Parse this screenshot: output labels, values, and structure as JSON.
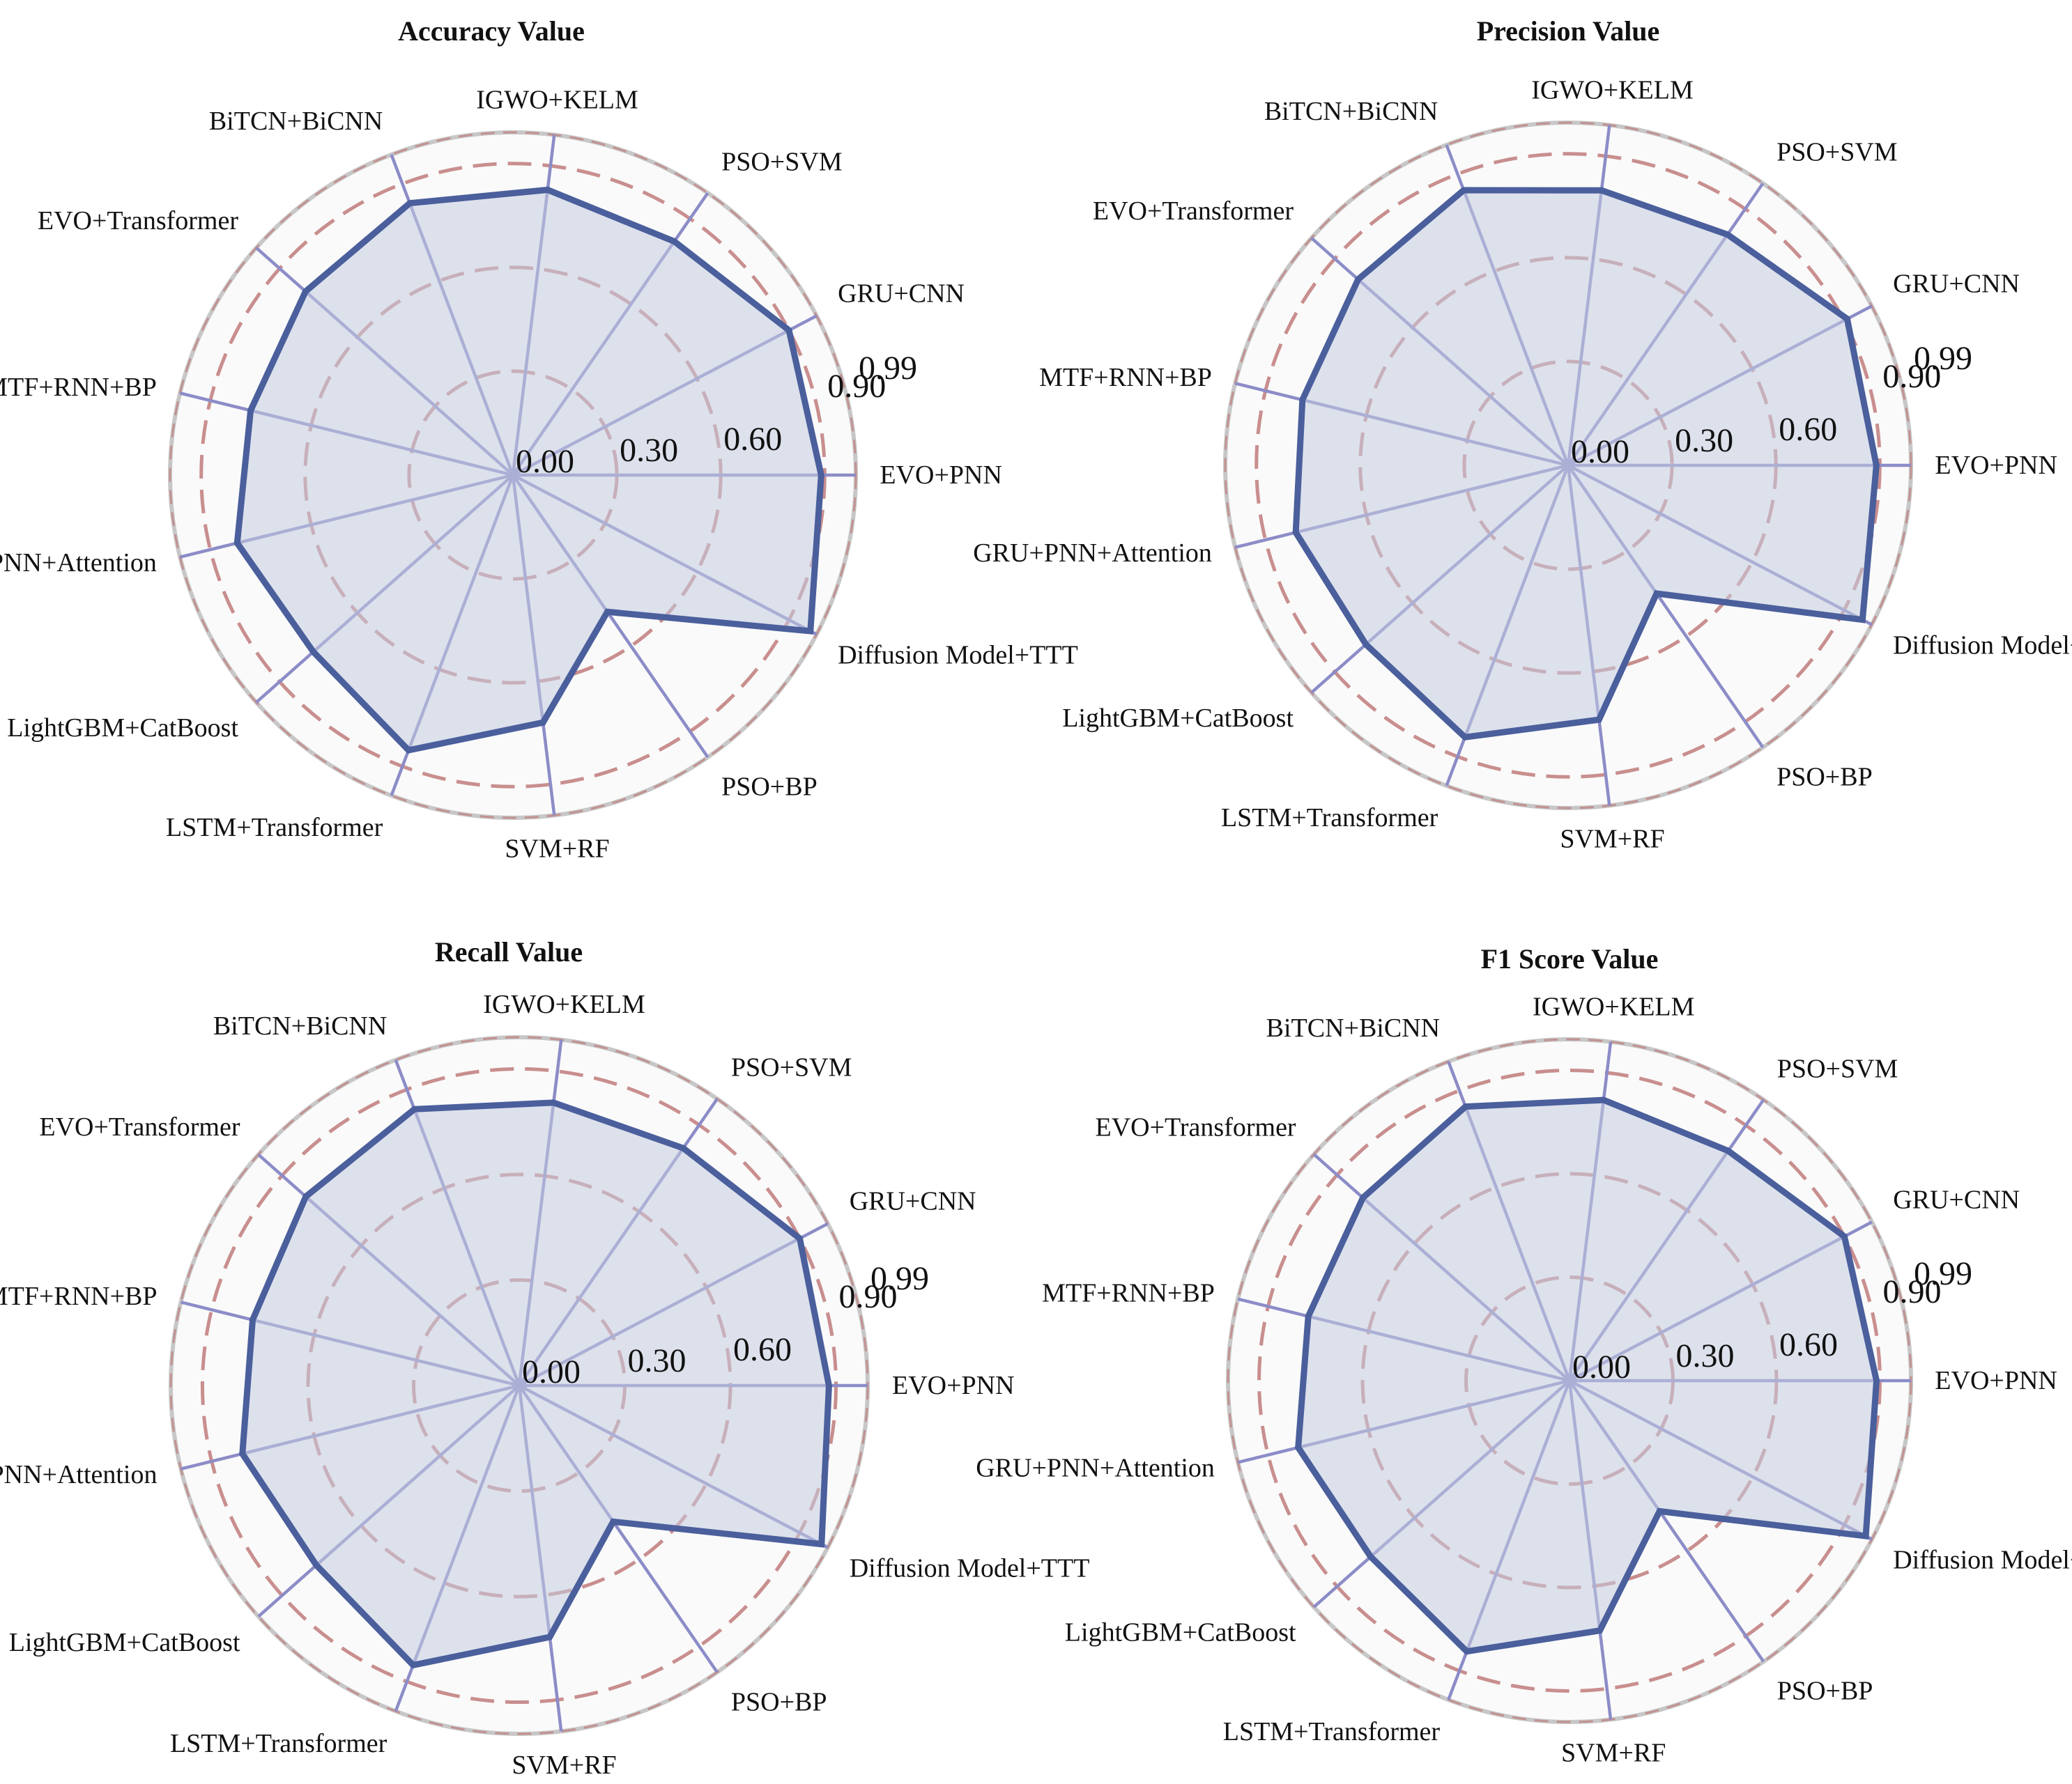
{
  "chart_data": [
    {
      "type": "radar",
      "title": "Accuracy Value",
      "categories": [
        "EVO+PNN",
        "Diffusion Model+TTT",
        "PSO+BP",
        "SVM+RF",
        "LSTM+Transformer",
        "LightGBM+CatBoost",
        "GRU+PNN+Attention",
        "MTF+RNN+BP",
        "EVO+Transformer",
        "BiTCN+BiCNN",
        "IGWO+KELM",
        "PSO+SVM",
        "GRU+CNN"
      ],
      "values": [
        0.89,
        0.97,
        0.48,
        0.72,
        0.85,
        0.77,
        0.82,
        0.78,
        0.8,
        0.84,
        0.83,
        0.82,
        0.9
      ],
      "tick_labels": [
        "0.00",
        "0.30",
        "0.60",
        "0.90",
        "0.99"
      ],
      "rlim": [
        0,
        0.99
      ]
    },
    {
      "type": "radar",
      "title": "Precision Value",
      "categories": [
        "EVO+PNN",
        "Diffusion Model+TTT",
        "PSO+BP",
        "SVM+RF",
        "LSTM+Transformer",
        "LightGBM+CatBoost",
        "GRU+PNN+Attention",
        "MTF+RNN+BP",
        "EVO+Transformer",
        "BiTCN+BiCNN",
        "IGWO+KELM",
        "PSO+SVM",
        "GRU+CNN"
      ],
      "values": [
        0.89,
        0.96,
        0.45,
        0.74,
        0.84,
        0.78,
        0.81,
        0.79,
        0.81,
        0.85,
        0.8,
        0.81,
        0.91
      ],
      "tick_labels": [
        "0.00",
        "0.30",
        "0.60",
        "0.90",
        "0.99"
      ],
      "rlim": [
        0,
        0.99
      ]
    },
    {
      "type": "radar",
      "title": "Recall Value",
      "categories": [
        "EVO+PNN",
        "Diffusion Model+TTT",
        "PSO+BP",
        "SVM+RF",
        "LSTM+Transformer",
        "LightGBM+CatBoost",
        "GRU+PNN+Attention",
        "MTF+RNN+BP",
        "EVO+Transformer",
        "BiTCN+BiCNN",
        "IGWO+KELM",
        "PSO+SVM",
        "GRU+CNN"
      ],
      "values": [
        0.88,
        0.97,
        0.47,
        0.72,
        0.85,
        0.77,
        0.81,
        0.78,
        0.81,
        0.84,
        0.81,
        0.82,
        0.9
      ],
      "tick_labels": [
        "0.00",
        "0.30",
        "0.60",
        "0.90",
        "0.99"
      ],
      "rlim": [
        0,
        0.99
      ]
    },
    {
      "type": "radar",
      "title": "F1 Score Value",
      "categories": [
        "EVO+PNN",
        "Diffusion Model+TTT",
        "PSO+BP",
        "SVM+RF",
        "LSTM+Transformer",
        "LightGBM+CatBoost",
        "GRU+PNN+Attention",
        "MTF+RNN+BP",
        "EVO+Transformer",
        "BiTCN+BiCNN",
        "IGWO+KELM",
        "PSO+SVM",
        "GRU+CNN"
      ],
      "values": [
        0.89,
        0.97,
        0.46,
        0.73,
        0.84,
        0.77,
        0.81,
        0.78,
        0.8,
        0.85,
        0.82,
        0.81,
        0.9
      ],
      "tick_labels": [
        "0.00",
        "0.30",
        "0.60",
        "0.90",
        "0.99"
      ],
      "rlim": [
        0,
        0.99
      ]
    }
  ],
  "colors": {
    "series_line": "#4a5f9c",
    "series_fill": "#c5cce0",
    "spoke": "#8c8cc8",
    "grid_ring": "#c07a7a",
    "outer_ring": "#c7c7c7",
    "plot_bg": "#fafafa"
  }
}
